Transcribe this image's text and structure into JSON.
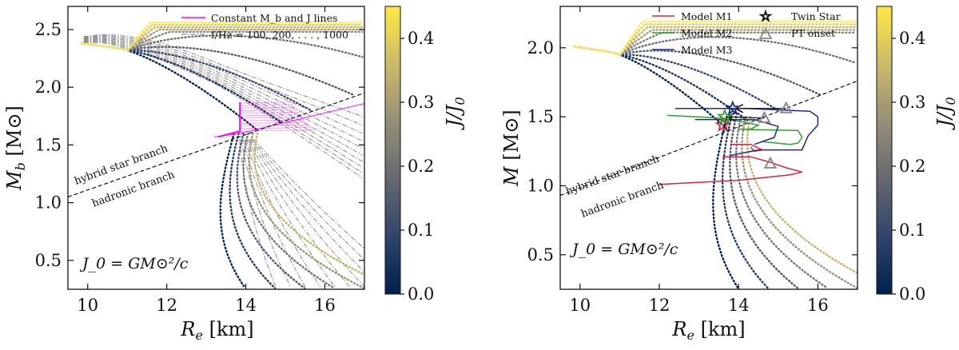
{
  "colors": {
    "cmap": [
      "#00204c",
      "#31446b",
      "#666870",
      "#958f78",
      "#cbba69",
      "#ffe945"
    ],
    "m1": "#d7263d",
    "m2": "#2ca02c",
    "m3": "#1f2a8a",
    "magenta": "#ff00ff",
    "freq": "#888888",
    "marker": "#8a8a8a"
  },
  "chart_data": [
    {
      "type": "line",
      "panel": "left",
      "xlabel": "R_e [km]",
      "ylabel": "M_b [M⊙]",
      "xlim": [
        9.5,
        17.0
      ],
      "ylim": [
        0.25,
        2.7
      ],
      "xticks": [
        "10",
        "12",
        "14",
        "16"
      ],
      "yticks": [
        "0.5",
        "1.0",
        "1.5",
        "2.0",
        "2.5"
      ],
      "colorbar": {
        "label": "J/J_0",
        "range": [
          0.0,
          0.45
        ],
        "ticks": [
          "0.0",
          "0.1",
          "0.2",
          "0.3",
          "0.4"
        ]
      },
      "annotation": "J_0 = GM⊙²/c",
      "branch_labels": [
        "hybrid star branch",
        "hadronic branch"
      ],
      "legend": [
        "Constant M_b and J lines",
        "f/Hz = 100, 200, . . . , 1000"
      ],
      "legend_position": "top-right",
      "divider": [
        [
          9.5,
          1.05
        ],
        [
          17.0,
          1.95
        ]
      ],
      "hybrid_sequence_j": [
        0.0,
        0.05,
        0.1,
        0.15,
        0.2,
        0.25,
        0.3,
        0.35,
        0.4,
        0.45
      ],
      "hadronic_sequence_j": [
        0.0,
        0.07,
        0.14,
        0.21,
        0.28,
        0.35
      ],
      "magenta_lines": {
        "constant_mb": [
          [
            13.3,
            1.57
          ],
          [
            13.85,
            1.62
          ],
          [
            13.85,
            1.87
          ]
        ],
        "constant_j": [
          [
            13.2,
            1.57
          ],
          [
            13.85,
            1.6
          ],
          [
            17.0,
            1.86
          ]
        ]
      }
    },
    {
      "type": "line",
      "panel": "right",
      "xlabel": "R_e [km]",
      "ylabel": "M [M⊙]",
      "xlim": [
        9.5,
        17.0
      ],
      "ylim": [
        0.25,
        2.3
      ],
      "xticks": [
        "10",
        "12",
        "14",
        "16"
      ],
      "yticks": [
        "0.5",
        "1.0",
        "1.5",
        "2.0"
      ],
      "colorbar": {
        "label": "J/J_0",
        "range": [
          0.0,
          0.45
        ],
        "ticks": [
          "0.0",
          "0.1",
          "0.2",
          "0.3",
          "0.4"
        ]
      },
      "annotation": "J_0 = GM⊙²/c",
      "branch_labels": [
        "hybrid star branch",
        "hadronic branch"
      ],
      "legend": [
        "Model M1",
        "Model M2",
        "Model M3",
        "Twin Star",
        "PT onset"
      ],
      "legend_position": "top-right",
      "divider": [
        [
          9.5,
          0.93
        ],
        [
          17.0,
          1.76
        ]
      ],
      "hybrid_sequence_j": [
        0.0,
        0.05,
        0.1,
        0.15,
        0.2,
        0.25,
        0.3,
        0.35,
        0.4,
        0.45
      ],
      "hadronic_sequence_j": [
        0.0,
        0.07,
        0.14,
        0.21,
        0.28,
        0.35
      ],
      "models": [
        {
          "name": "Model M1",
          "tracks": [
            [
              [
                12.0,
                1.01
              ],
              [
                14.0,
                1.04
              ],
              [
                15.3,
                1.08
              ],
              [
                15.6,
                1.1
              ],
              [
                15.2,
                1.13
              ],
              [
                14.8,
                1.17
              ],
              [
                14.3,
                1.21
              ],
              [
                13.6,
                1.21
              ]
            ],
            [
              [
                13.8,
                1.3
              ],
              [
                14.3,
                1.3
              ],
              [
                14.6,
                1.26
              ],
              [
                14.4,
                1.25
              ],
              [
                14.3,
                1.28
              ]
            ]
          ],
          "twin_star": [
            13.6,
            1.44
          ],
          "pt_onset": [
            14.8,
            1.16
          ]
        },
        {
          "name": "Model M2",
          "tracks": [
            [
              [
                12.2,
                1.51
              ],
              [
                13.6,
                1.49
              ],
              [
                14.5,
                1.44
              ],
              [
                14.3,
                1.41
              ],
              [
                14.0,
                1.41
              ],
              [
                15.5,
                1.4
              ],
              [
                15.6,
                1.35
              ],
              [
                15.5,
                1.31
              ],
              [
                15.3,
                1.3
              ],
              [
                14.6,
                1.32
              ]
            ]
          ],
          "twin_star": [
            13.65,
            1.5
          ],
          "pt_onset": [
            14.65,
            1.49
          ]
        },
        {
          "name": "Model M3",
          "tracks": [
            [
              [
                12.4,
                1.56
              ],
              [
                14.2,
                1.56
              ],
              [
                15.8,
                1.54
              ],
              [
                16.0,
                1.5
              ],
              [
                16.0,
                1.44
              ],
              [
                15.75,
                1.36
              ],
              [
                15.6,
                1.26
              ],
              [
                14.5,
                1.26
              ],
              [
                13.8,
                1.22
              ]
            ],
            [
              [
                12.9,
                1.48
              ],
              [
                14.4,
                1.48
              ],
              [
                15.0,
                1.43
              ],
              [
                14.9,
                1.35
              ],
              [
                14.4,
                1.3
              ]
            ]
          ],
          "twin_star": [
            13.85,
            1.56
          ],
          "pt_onset": [
            15.2,
            1.56
          ]
        }
      ],
      "arrows": [
        [
          [
            15.2,
            1.56
          ],
          [
            13.95,
            1.56
          ]
        ],
        [
          [
            14.65,
            1.49
          ],
          [
            13.75,
            1.5
          ]
        ]
      ]
    }
  ]
}
